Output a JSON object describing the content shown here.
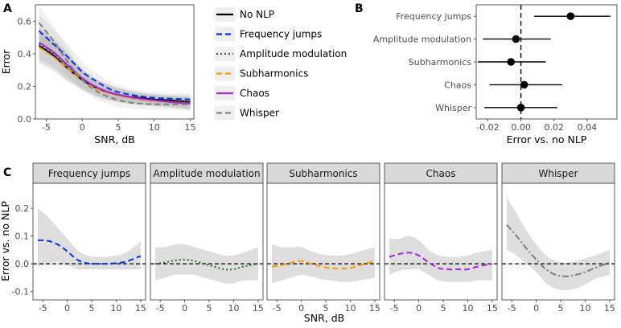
{
  "chart_data": [
    {
      "panel": "A",
      "type": "line",
      "title": "",
      "xlabel": "SNR, dB",
      "ylabel": "Error",
      "xlim": [
        -6.5,
        15.5
      ],
      "ylim": [
        0,
        0.7
      ],
      "xticks": [
        -5,
        0,
        5,
        10,
        15
      ],
      "yticks": [
        0.0,
        0.2,
        0.4,
        0.6
      ],
      "x": [
        -6,
        -4,
        -2,
        0,
        2,
        4,
        6,
        8,
        10,
        12,
        15
      ],
      "series": [
        {
          "name": "No NLP",
          "color": "#000000",
          "dash": "solid",
          "values": [
            0.45,
            0.39,
            0.31,
            0.24,
            0.19,
            0.16,
            0.14,
            0.13,
            0.12,
            0.115,
            0.105
          ]
        },
        {
          "name": "Frequency jumps",
          "color": "#0033ee",
          "dash": "dashed",
          "values": [
            0.54,
            0.46,
            0.38,
            0.29,
            0.23,
            0.18,
            0.155,
            0.14,
            0.13,
            0.125,
            0.12
          ]
        },
        {
          "name": "Amplitude modulation",
          "color": "#227722",
          "dash": "dotted",
          "values": [
            0.46,
            0.4,
            0.32,
            0.25,
            0.195,
            0.16,
            0.14,
            0.125,
            0.115,
            0.11,
            0.1
          ]
        },
        {
          "name": "Subharmonics",
          "color": "#ff9900",
          "dash": "dashed",
          "values": [
            0.44,
            0.38,
            0.31,
            0.235,
            0.185,
            0.155,
            0.135,
            0.12,
            0.11,
            0.105,
            0.095
          ]
        },
        {
          "name": "Chaos",
          "color": "#aa22dd",
          "dash": "solid",
          "values": [
            0.47,
            0.41,
            0.33,
            0.25,
            0.195,
            0.16,
            0.14,
            0.125,
            0.115,
            0.105,
            0.095
          ]
        },
        {
          "name": "Whisper",
          "color": "#808080",
          "dash": "dashed",
          "values": [
            0.59,
            0.48,
            0.35,
            0.24,
            0.17,
            0.13,
            0.105,
            0.095,
            0.09,
            0.09,
            0.09
          ]
        }
      ],
      "band_halfwidth": [
        0.1,
        0.09,
        0.08,
        0.06,
        0.05,
        0.045,
        0.04,
        0.035,
        0.035,
        0.035,
        0.04
      ]
    },
    {
      "panel": "B",
      "type": "scatter",
      "title": "",
      "xlabel": "Error vs. no NLP",
      "ylabel": "",
      "xlim": [
        -0.027,
        0.058
      ],
      "xticks": [
        -0.02,
        0.0,
        0.02,
        0.04
      ],
      "xtick_labels": [
        "-0.02",
        "0.00",
        "0.02",
        "0.04"
      ],
      "categories": [
        "Frequency jumps",
        "Amplitude modulation",
        "Subharmonics",
        "Chaos",
        "Whisper"
      ],
      "estimates": [
        0.03,
        -0.003,
        -0.006,
        0.002,
        0.0
      ],
      "ci_low": [
        0.008,
        -0.023,
        -0.026,
        -0.019,
        -0.022
      ],
      "ci_high": [
        0.054,
        0.018,
        0.015,
        0.025,
        0.022
      ]
    },
    {
      "panel": "C",
      "type": "line",
      "title": "",
      "xlabel": "SNR, dB",
      "ylabel": "Error vs. no NLP",
      "xlim": [
        -7,
        16
      ],
      "ylim": [
        -0.13,
        0.29
      ],
      "xticks": [
        -5,
        0,
        5,
        10,
        15
      ],
      "yticks": [
        -0.1,
        0.0,
        0.1,
        0.2
      ],
      "ytick_labels": [
        "-0.1",
        "0.0",
        "0.1",
        "0.2"
      ],
      "x": [
        -6,
        -4,
        -2,
        0,
        2,
        4,
        6,
        8,
        10,
        12,
        15
      ],
      "facets": [
        {
          "name": "Frequency jumps",
          "color": "#0033ee",
          "dash": "dashed",
          "values": [
            0.085,
            0.083,
            0.07,
            0.045,
            0.015,
            0.002,
            0.0,
            0.0,
            0.002,
            0.008,
            0.028
          ],
          "band_low": [
            -0.01,
            0.0,
            0.005,
            -0.005,
            -0.02,
            -0.02,
            -0.02,
            -0.02,
            -0.02,
            -0.02,
            -0.02
          ],
          "band_high": [
            0.2,
            0.17,
            0.13,
            0.09,
            0.05,
            0.03,
            0.025,
            0.025,
            0.03,
            0.04,
            0.08
          ]
        },
        {
          "name": "Amplitude modulation",
          "color": "#227722",
          "dash": "dotted",
          "values": [
            0.0,
            0.005,
            0.012,
            0.015,
            0.01,
            0.0,
            -0.01,
            -0.02,
            -0.02,
            -0.01,
            0.0
          ],
          "band_low": [
            -0.06,
            -0.05,
            -0.04,
            -0.04,
            -0.04,
            -0.05,
            -0.06,
            -0.07,
            -0.07,
            -0.06,
            -0.06
          ],
          "band_high": [
            0.06,
            0.06,
            0.07,
            0.07,
            0.06,
            0.05,
            0.04,
            0.03,
            0.03,
            0.04,
            0.06
          ]
        },
        {
          "name": "Subharmonics",
          "color": "#ff9900",
          "dash": "dashed",
          "values": [
            -0.01,
            -0.005,
            0.005,
            0.01,
            0.0,
            -0.01,
            -0.015,
            -0.018,
            -0.015,
            -0.005,
            0.01
          ],
          "band_low": [
            -0.07,
            -0.06,
            -0.05,
            -0.04,
            -0.045,
            -0.055,
            -0.06,
            -0.065,
            -0.065,
            -0.06,
            -0.05
          ],
          "band_high": [
            0.07,
            0.06,
            0.06,
            0.06,
            0.045,
            0.035,
            0.03,
            0.03,
            0.035,
            0.045,
            0.06
          ]
        },
        {
          "name": "Chaos",
          "color": "#aa22dd",
          "dash": "dashed",
          "values": [
            0.025,
            0.035,
            0.04,
            0.03,
            0.005,
            -0.015,
            -0.02,
            -0.02,
            -0.02,
            -0.01,
            0.0
          ],
          "band_low": [
            -0.04,
            -0.025,
            -0.02,
            -0.02,
            -0.04,
            -0.06,
            -0.065,
            -0.065,
            -0.065,
            -0.06,
            -0.06
          ],
          "band_high": [
            0.09,
            0.09,
            0.1,
            0.085,
            0.05,
            0.03,
            0.025,
            0.025,
            0.03,
            0.04,
            0.05
          ]
        },
        {
          "name": "Whisper",
          "color": "#808080",
          "dash": "dashdot",
          "values": [
            0.14,
            0.1,
            0.055,
            0.015,
            -0.02,
            -0.04,
            -0.045,
            -0.04,
            -0.03,
            -0.015,
            0.005
          ],
          "band_low": [
            0.05,
            0.03,
            0.0,
            -0.03,
            -0.07,
            -0.09,
            -0.095,
            -0.09,
            -0.075,
            -0.055,
            -0.04
          ],
          "band_high": [
            0.24,
            0.18,
            0.12,
            0.07,
            0.03,
            0.01,
            0.005,
            0.01,
            0.02,
            0.03,
            0.05
          ]
        }
      ]
    }
  ]
}
